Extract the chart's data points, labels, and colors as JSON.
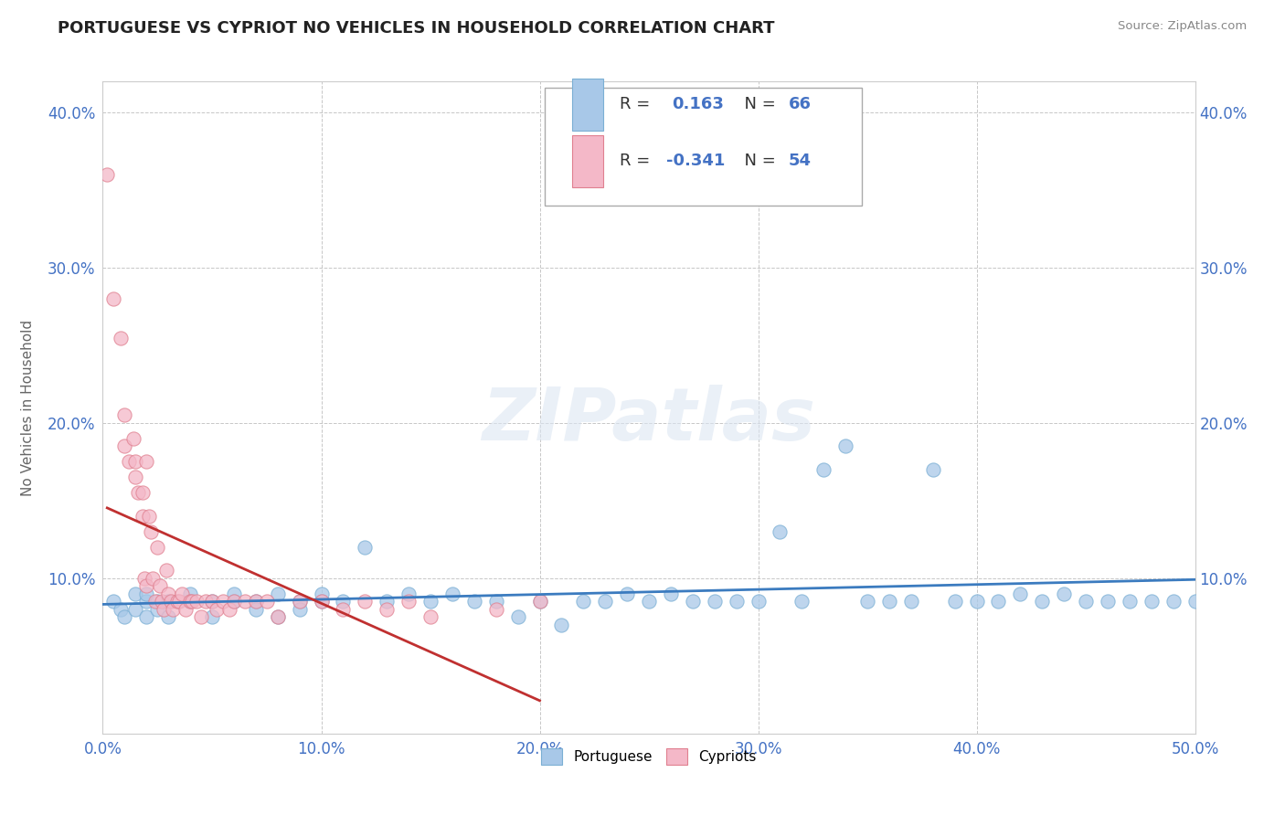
{
  "title": "PORTUGUESE VS CYPRIOT NO VEHICLES IN HOUSEHOLD CORRELATION CHART",
  "source": "Source: ZipAtlas.com",
  "ylabel": "No Vehicles in Household",
  "xlabel": "",
  "xlim": [
    0.0,
    0.5
  ],
  "ylim": [
    0.0,
    0.42
  ],
  "xticks": [
    0.0,
    0.1,
    0.2,
    0.3,
    0.4,
    0.5
  ],
  "yticks": [
    0.0,
    0.1,
    0.2,
    0.3,
    0.4
  ],
  "xtick_labels": [
    "0.0%",
    "10.0%",
    "20.0%",
    "30.0%",
    "40.0%",
    "50.0%"
  ],
  "ytick_labels": [
    "",
    "10.0%",
    "20.0%",
    "30.0%",
    "40.0%"
  ],
  "portuguese_r": 0.163,
  "portuguese_n": 66,
  "cypriot_r": -0.341,
  "cypriot_n": 54,
  "portuguese_color": "#a8c8e8",
  "portuguese_edge_color": "#7bafd4",
  "cypriot_color": "#f4b8c8",
  "cypriot_edge_color": "#e08090",
  "portuguese_line_color": "#3b7bbf",
  "cypriot_line_color": "#c03030",
  "watermark": "ZIPatlas",
  "portuguese_x": [
    0.005,
    0.008,
    0.01,
    0.015,
    0.015,
    0.02,
    0.02,
    0.02,
    0.025,
    0.025,
    0.03,
    0.03,
    0.04,
    0.04,
    0.05,
    0.05,
    0.06,
    0.06,
    0.07,
    0.07,
    0.08,
    0.08,
    0.09,
    0.09,
    0.1,
    0.1,
    0.11,
    0.12,
    0.13,
    0.14,
    0.15,
    0.16,
    0.17,
    0.18,
    0.19,
    0.2,
    0.21,
    0.22,
    0.23,
    0.24,
    0.25,
    0.26,
    0.27,
    0.28,
    0.29,
    0.3,
    0.31,
    0.32,
    0.33,
    0.34,
    0.35,
    0.36,
    0.37,
    0.38,
    0.39,
    0.4,
    0.41,
    0.42,
    0.43,
    0.44,
    0.45,
    0.46,
    0.47,
    0.48,
    0.49,
    0.5
  ],
  "portuguese_y": [
    0.085,
    0.08,
    0.075,
    0.09,
    0.08,
    0.085,
    0.075,
    0.09,
    0.085,
    0.08,
    0.085,
    0.075,
    0.085,
    0.09,
    0.085,
    0.075,
    0.085,
    0.09,
    0.085,
    0.08,
    0.09,
    0.075,
    0.085,
    0.08,
    0.085,
    0.09,
    0.085,
    0.12,
    0.085,
    0.09,
    0.085,
    0.09,
    0.085,
    0.085,
    0.075,
    0.085,
    0.07,
    0.085,
    0.085,
    0.09,
    0.085,
    0.09,
    0.085,
    0.085,
    0.085,
    0.085,
    0.13,
    0.085,
    0.17,
    0.185,
    0.085,
    0.085,
    0.085,
    0.17,
    0.085,
    0.085,
    0.085,
    0.09,
    0.085,
    0.09,
    0.085,
    0.085,
    0.085,
    0.085,
    0.085,
    0.085
  ],
  "cypriot_x": [
    0.002,
    0.005,
    0.008,
    0.01,
    0.01,
    0.012,
    0.014,
    0.015,
    0.015,
    0.016,
    0.018,
    0.018,
    0.019,
    0.02,
    0.02,
    0.021,
    0.022,
    0.023,
    0.024,
    0.025,
    0.026,
    0.027,
    0.028,
    0.029,
    0.03,
    0.031,
    0.032,
    0.034,
    0.035,
    0.036,
    0.038,
    0.04,
    0.041,
    0.043,
    0.045,
    0.047,
    0.05,
    0.052,
    0.055,
    0.058,
    0.06,
    0.065,
    0.07,
    0.075,
    0.08,
    0.09,
    0.1,
    0.11,
    0.12,
    0.13,
    0.14,
    0.15,
    0.18,
    0.2
  ],
  "cypriot_y": [
    0.36,
    0.28,
    0.255,
    0.205,
    0.185,
    0.175,
    0.19,
    0.175,
    0.165,
    0.155,
    0.155,
    0.14,
    0.1,
    0.175,
    0.095,
    0.14,
    0.13,
    0.1,
    0.085,
    0.12,
    0.095,
    0.085,
    0.08,
    0.105,
    0.09,
    0.085,
    0.08,
    0.085,
    0.085,
    0.09,
    0.08,
    0.085,
    0.085,
    0.085,
    0.075,
    0.085,
    0.085,
    0.08,
    0.085,
    0.08,
    0.085,
    0.085,
    0.085,
    0.085,
    0.075,
    0.085,
    0.085,
    0.08,
    0.085,
    0.08,
    0.085,
    0.075,
    0.08,
    0.085
  ]
}
